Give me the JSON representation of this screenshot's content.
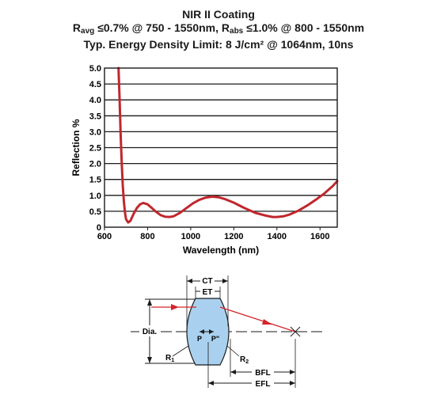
{
  "chart_data": {
    "type": "line",
    "title": "NIR II Coating",
    "subtitle_parts": {
      "r_avg_prefix": "R",
      "r_avg_sub": "avg",
      "r_avg_rest": " ≤0.7% @ 750 - 1550nm, ",
      "r_abs_prefix": "R",
      "r_abs_sub": "abs",
      "r_abs_rest": " ≤1.0% @ 800 - 1550nm"
    },
    "subtitle2": "Typ. Energy Density Limit: 8 J/cm² @ 1064nm, 10ns",
    "xlabel": "Wavelength (nm)",
    "ylabel": "Reflection %",
    "xlim": [
      600,
      1680
    ],
    "ylim": [
      0,
      5.0
    ],
    "xticks": [
      "600",
      "800",
      "1000",
      "1200",
      "1400",
      "1600"
    ],
    "yticks": [
      "0",
      "0.5",
      "1.0",
      "1.5",
      "2.0",
      "2.5",
      "3.0",
      "3.5",
      "4.0",
      "4.5",
      "5.0"
    ],
    "grid": "horizontal",
    "series": [
      {
        "color": "#c0272d",
        "points": [
          [
            665,
            5.0
          ],
          [
            670,
            4.0
          ],
          [
            675,
            2.9
          ],
          [
            680,
            2.0
          ],
          [
            685,
            1.3
          ],
          [
            690,
            0.8
          ],
          [
            695,
            0.45
          ],
          [
            700,
            0.25
          ],
          [
            710,
            0.15
          ],
          [
            720,
            0.2
          ],
          [
            735,
            0.42
          ],
          [
            750,
            0.6
          ],
          [
            765,
            0.72
          ],
          [
            780,
            0.76
          ],
          [
            800,
            0.72
          ],
          [
            820,
            0.6
          ],
          [
            840,
            0.48
          ],
          [
            860,
            0.38
          ],
          [
            880,
            0.33
          ],
          [
            900,
            0.32
          ],
          [
            920,
            0.34
          ],
          [
            950,
            0.45
          ],
          [
            980,
            0.6
          ],
          [
            1010,
            0.75
          ],
          [
            1040,
            0.86
          ],
          [
            1070,
            0.93
          ],
          [
            1100,
            0.96
          ],
          [
            1130,
            0.94
          ],
          [
            1160,
            0.88
          ],
          [
            1200,
            0.77
          ],
          [
            1250,
            0.6
          ],
          [
            1300,
            0.45
          ],
          [
            1350,
            0.36
          ],
          [
            1380,
            0.32
          ],
          [
            1400,
            0.32
          ],
          [
            1430,
            0.34
          ],
          [
            1460,
            0.4
          ],
          [
            1500,
            0.52
          ],
          [
            1540,
            0.68
          ],
          [
            1580,
            0.86
          ],
          [
            1620,
            1.06
          ],
          [
            1660,
            1.3
          ],
          [
            1680,
            1.45
          ]
        ]
      }
    ]
  },
  "diagram": {
    "labels": {
      "ct": "CT",
      "et": "ET",
      "dia": "Dia.",
      "p": "P",
      "p_prime": "P\"",
      "r1": "R",
      "r1_sub": "1",
      "r2": "R",
      "r2_sub": "2",
      "bfl": "BFL",
      "efl": "EFL"
    },
    "lens_fill": "#a9d1ef",
    "ray_color": "#d6232b"
  }
}
